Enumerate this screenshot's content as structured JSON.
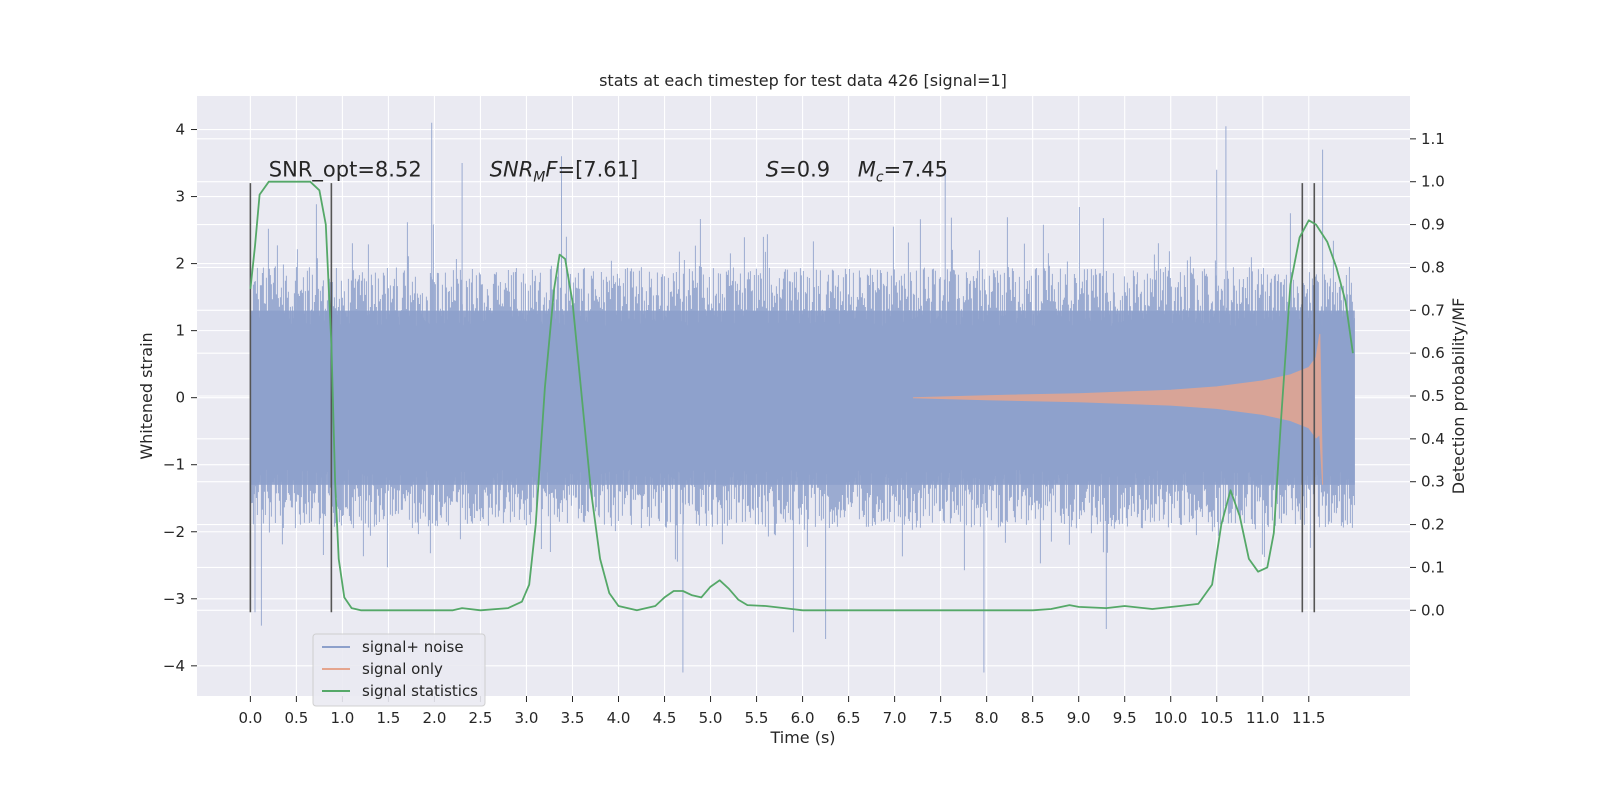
{
  "chart_data": {
    "type": "line",
    "title": "stats at each timestep for test data 426 [signal=1]",
    "xlabel": "Time (s)",
    "ylabel": "Whitened strain",
    "y2label": "Detection probability/MF",
    "xlim": [
      -0.58,
      12.6
    ],
    "ylim": [
      -4.45,
      4.5
    ],
    "y2lim": [
      -0.2,
      1.2
    ],
    "xticks": [
      0.0,
      0.5,
      1.0,
      1.5,
      2.0,
      2.5,
      3.0,
      3.5,
      4.0,
      4.5,
      5.0,
      5.5,
      6.0,
      6.5,
      7.0,
      7.5,
      8.0,
      8.5,
      9.0,
      9.5,
      10.0,
      10.5,
      11.0,
      11.5
    ],
    "xtick_labels": [
      "0.0",
      "0.5",
      "1.0",
      "1.5",
      "2.0",
      "2.5",
      "3.0",
      "3.5",
      "4.0",
      "4.5",
      "5.0",
      "5.5",
      "6.0",
      "6.5",
      "7.0",
      "7.5",
      "8.0",
      "8.5",
      "9.0",
      "9.5",
      "10.0",
      "10.5",
      "11.0",
      "11.5"
    ],
    "yticks": [
      -4,
      -3,
      -2,
      -1,
      0,
      1,
      2,
      3,
      4
    ],
    "ytick_labels": [
      "−4",
      "−3",
      "−2",
      "−1",
      "0",
      "1",
      "2",
      "3",
      "4"
    ],
    "y2ticks": [
      0.0,
      0.1,
      0.2,
      0.3,
      0.4,
      0.5,
      0.6,
      0.7,
      0.8,
      0.9,
      1.0,
      1.1
    ],
    "y2tick_labels": [
      "0.0",
      "0.1",
      "0.2",
      "0.3",
      "0.4",
      "0.5",
      "0.6",
      "0.7",
      "0.8",
      "0.9",
      "1.0",
      "1.1"
    ],
    "grid": true,
    "legend_position": "lower-left",
    "series": [
      {
        "name": "signal+ noise",
        "color": "#8da0cb",
        "kind": "noise band",
        "x_range": [
          0.0,
          12.0
        ],
        "core_amplitude": 1.95,
        "peaks": [
          [
            0.05,
            -3.2
          ],
          [
            0.12,
            -3.4
          ],
          [
            1.97,
            4.1
          ],
          [
            2.3,
            3.5
          ],
          [
            3.38,
            3.6
          ],
          [
            4.7,
            -4.1
          ],
          [
            5.9,
            -3.5
          ],
          [
            6.25,
            -3.6
          ],
          [
            7.55,
            3.4
          ],
          [
            7.97,
            -4.1
          ],
          [
            9.3,
            -3.45
          ],
          [
            10.5,
            3.4
          ],
          [
            10.6,
            4.05
          ],
          [
            11.65,
            3.7
          ]
        ]
      },
      {
        "name": "signal only",
        "color": "#e5a58e",
        "kind": "chirp envelope",
        "points": [
          [
            7.2,
            0.0
          ],
          [
            8.0,
            0.03
          ],
          [
            9.0,
            0.06
          ],
          [
            10.0,
            0.11
          ],
          [
            10.5,
            0.16
          ],
          [
            11.0,
            0.25
          ],
          [
            11.3,
            0.34
          ],
          [
            11.5,
            0.45
          ],
          [
            11.58,
            0.6
          ],
          [
            11.62,
            0.95
          ],
          [
            11.65,
            -1.3
          ],
          [
            11.7,
            0.0
          ]
        ]
      },
      {
        "name": "signal statistics",
        "color": "#55a868",
        "axis": "right",
        "x": [
          0.0,
          0.05,
          0.1,
          0.2,
          0.35,
          0.5,
          0.65,
          0.75,
          0.82,
          0.88,
          0.92,
          0.96,
          1.02,
          1.1,
          1.2,
          1.4,
          1.8,
          2.2,
          2.3,
          2.5,
          2.8,
          2.95,
          3.03,
          3.1,
          3.2,
          3.3,
          3.36,
          3.42,
          3.5,
          3.6,
          3.7,
          3.8,
          3.9,
          4.0,
          4.2,
          4.4,
          4.5,
          4.6,
          4.7,
          4.8,
          4.9,
          5.0,
          5.1,
          5.2,
          5.3,
          5.4,
          5.6,
          5.8,
          6.0,
          6.5,
          7.0,
          7.5,
          8.0,
          8.5,
          8.7,
          8.9,
          9.0,
          9.3,
          9.5,
          9.8,
          10.1,
          10.3,
          10.45,
          10.55,
          10.65,
          10.75,
          10.85,
          10.95,
          11.05,
          11.12,
          11.2,
          11.3,
          11.4,
          11.5,
          11.58,
          11.7,
          11.8,
          11.9,
          11.98
        ],
        "y": [
          0.75,
          0.85,
          0.97,
          1.0,
          1.0,
          1.0,
          1.0,
          0.98,
          0.9,
          0.62,
          0.3,
          0.12,
          0.03,
          0.005,
          0.0,
          0.0,
          0.0,
          0.0,
          0.005,
          0.0,
          0.005,
          0.02,
          0.06,
          0.2,
          0.52,
          0.75,
          0.83,
          0.82,
          0.72,
          0.5,
          0.28,
          0.12,
          0.04,
          0.01,
          0.0,
          0.01,
          0.03,
          0.045,
          0.045,
          0.035,
          0.03,
          0.055,
          0.07,
          0.05,
          0.025,
          0.012,
          0.01,
          0.005,
          0.0,
          0.0,
          0.0,
          0.0,
          0.0,
          0.0,
          0.003,
          0.012,
          0.008,
          0.005,
          0.01,
          0.003,
          0.01,
          0.015,
          0.06,
          0.2,
          0.28,
          0.22,
          0.12,
          0.09,
          0.1,
          0.18,
          0.45,
          0.76,
          0.87,
          0.91,
          0.9,
          0.86,
          0.8,
          0.72,
          0.6
        ]
      }
    ],
    "vertical_markers": [
      0.0,
      0.88,
      11.43,
      11.56
    ],
    "vertical_marker_range": [
      -3.2,
      3.2
    ],
    "annotations": [
      {
        "text": "SNR_opt=8.52",
        "x": 0.2,
        "y": 3.3
      },
      {
        "base": "SNR",
        "sub": "M",
        "rest": "F=[7.61]",
        "x": 2.6,
        "y": 3.3
      },
      {
        "base": "S",
        "rest": "=0.9",
        "x": 5.6,
        "y": 3.3
      },
      {
        "base": "M",
        "sub": "c",
        "rest": "=7.45",
        "x": 6.6,
        "y": 3.3
      }
    ]
  }
}
